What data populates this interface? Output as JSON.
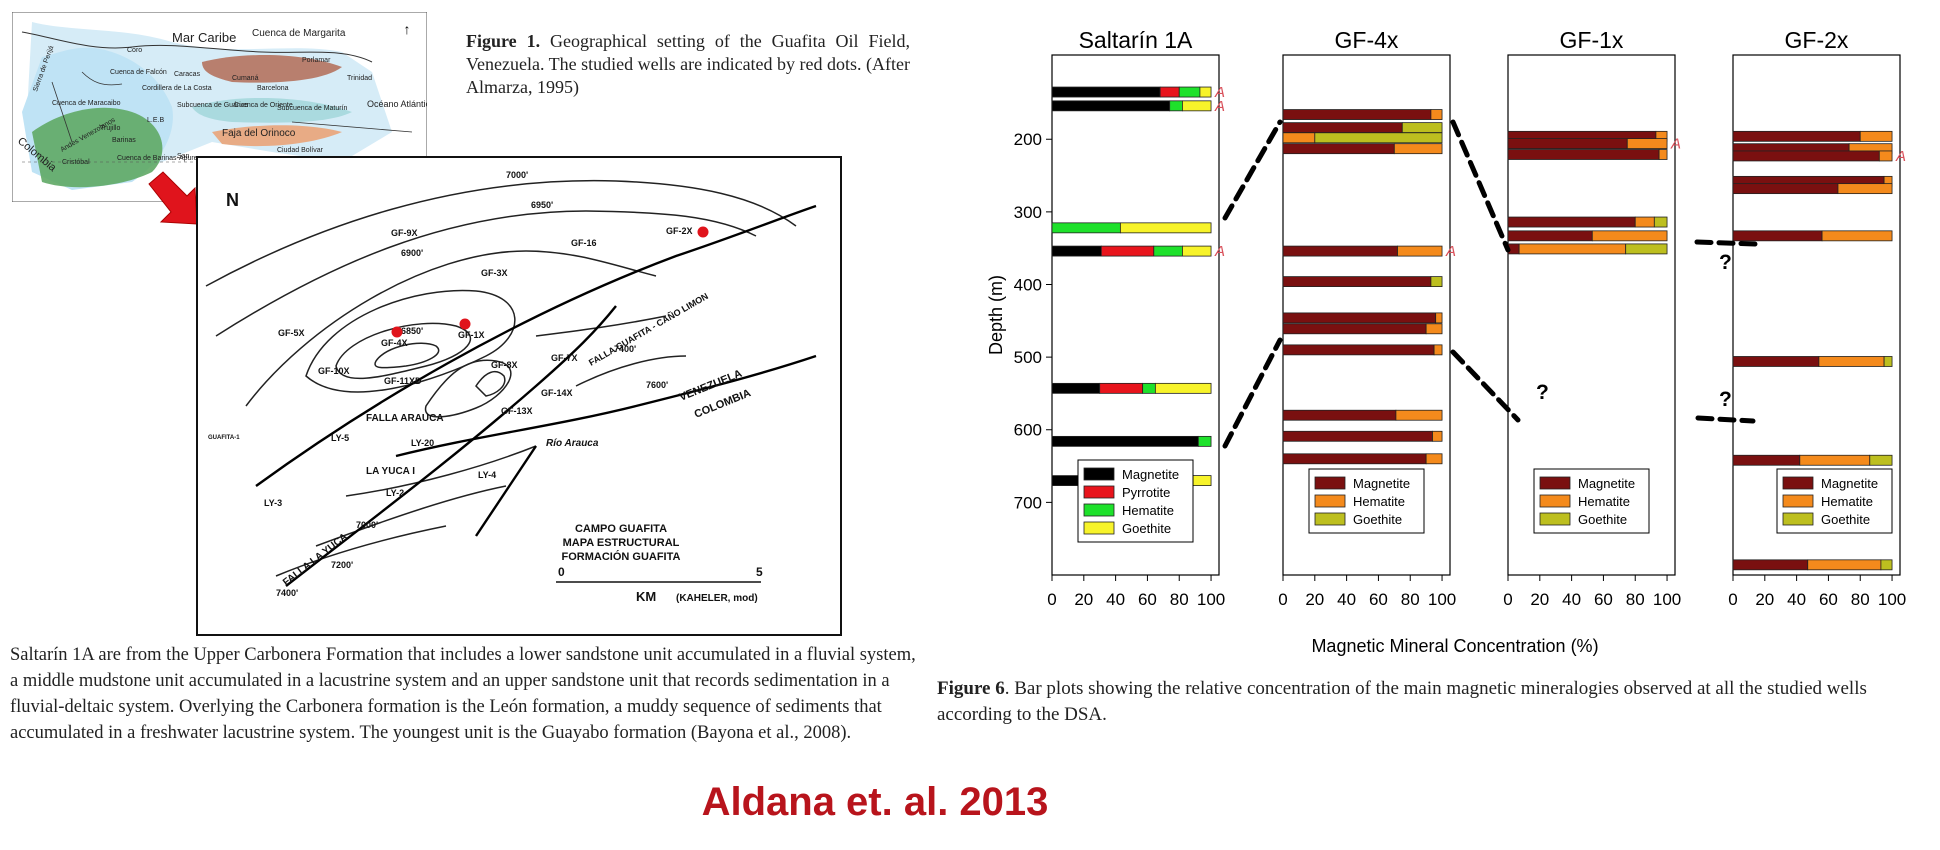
{
  "figure1": {
    "label": "Figure 1.",
    "caption": " Geographical setting of the Guafita Oil Field, Venezuela. The studied wells are indicated by red dots. (After Almarza, 1995)",
    "inset_labels": [
      "Mar Caribe",
      "Cuenca de Margarita",
      "Coro",
      "Cuenca de Falcón",
      "Cuenca de Maracaibo",
      "Cordillera de La Costa",
      "Caracas",
      "Cumaná",
      "Barcelona",
      "Porlamar",
      "Trinidad",
      "Océano Atlántico",
      "Colombia",
      "Sierra de Perijá",
      "Trujillo",
      "Andes Venezolanos",
      "Barinas",
      "Subcuenca de Guárico",
      "Cuenca de Oriente",
      "Subcuenca de Maturín",
      "Faja del Orinoco",
      "Ciudad Bolívar",
      "Cristóbal",
      "Cuenca de Barinas-Apure",
      "San",
      "L.E.B"
    ],
    "map_labels": {
      "north": "N",
      "wells": [
        "GF-9X",
        "GF-16",
        "GF-2X",
        "GF-3X",
        "GF-5X",
        "GF-4X",
        "GF-1X",
        "GF-10X",
        "GF-11XD",
        "GF-8X",
        "GF-7X",
        "GF-14X",
        "GF-13X",
        "LY-5",
        "LY-20",
        "LY-4",
        "LY-3",
        "LY-2",
        "LA YUCA I",
        "GUAFITA-1"
      ],
      "contours": [
        "7000'",
        "6950'",
        "6900'",
        "6850'",
        "7400'",
        "7600'",
        "7000'",
        "7200'",
        "7400'"
      ],
      "faults": [
        "FALLA GUAFITA - CAÑO LIMON",
        "FALLA ARAUCA",
        "FALLA LA YUCA",
        "Río Arauca",
        "VENEZUELA",
        "COLOMBIA"
      ],
      "title": [
        "CAMPO GUAFITA",
        "MAPA ESTRUCTURAL",
        "FORMACIÓN GUAFITA"
      ],
      "scale_start": "0",
      "scale_end": "5",
      "scale_unit": "KM",
      "credit": "(KAHELER, mod)"
    }
  },
  "body_text": "Saltarín 1A are from the Upper Carbonera Formation that includes a lower sandstone unit accumulated in a fluvial system, a middle mudstone unit accumulated in a lacustrine system and an upper sandstone unit that records sedimentation in a fluvial-deltaic system. Overlying the Carbonera formation is the León formation, a muddy sequence of sediments that accumulated in a freshwater lacustrine system. The youngest unit is the Guayabo formation (Bayona et al., 2008).",
  "figure6": {
    "label": "Figure 6",
    "caption": ". Bar plots showing the relative concentration of the main magnetic mineralogies observed at all the studied wells according to the DSA."
  },
  "citation": "Aldana et. al. 2013",
  "colors": {
    "Magnetite_saltarin": "#000000",
    "Pyrrotite": "#e8141c",
    "Hematite_saltarin": "#1ee12b",
    "Goethite_saltarin": "#f7f32a",
    "Magnetite": "#7a1010",
    "Hematite": "#f48a1c",
    "Goethite": "#bdbf1f",
    "red_dot": "#e0141c",
    "citation": "#b8141c"
  },
  "chart_data": {
    "type": "bar",
    "orientation": "horizontal-stacked",
    "xlabel": "Magnetic Mineral Concentration (%)",
    "ylabel": "Depth (m)",
    "ylim": [
      0,
      800
    ],
    "yticks": [
      200,
      300,
      400,
      500,
      600,
      700
    ],
    "xticks": [
      0,
      20,
      40,
      60,
      80,
      100
    ],
    "xlim": [
      0,
      105
    ],
    "annotation": "?",
    "wells": [
      {
        "name": "Saltarín 1A",
        "series": [
          "Magnetite",
          "Pyrrotite",
          "Hematite",
          "Goethite"
        ],
        "legend": "bottom-center",
        "bars": [
          {
            "depth": 135,
            "values": [
              68,
              12,
              13,
              7
            ],
            "mark": "A"
          },
          {
            "depth": 154,
            "values": [
              74,
              0,
              8,
              18
            ],
            "mark": "A"
          },
          {
            "depth": 322,
            "values": [
              0,
              0,
              43,
              57
            ]
          },
          {
            "depth": 354,
            "values": [
              31,
              33,
              18,
              18
            ],
            "mark": "A"
          },
          {
            "depth": 543,
            "values": [
              30,
              27,
              8,
              35
            ]
          },
          {
            "depth": 616,
            "values": [
              92,
              0,
              8,
              0
            ]
          },
          {
            "depth": 670,
            "values": [
              39,
              24,
              9,
              28
            ]
          }
        ]
      },
      {
        "name": "GF-4x",
        "series": [
          "Magnetite",
          "Hematite",
          "Goethite"
        ],
        "legend": "bottom-center",
        "bars": [
          {
            "depth": 166,
            "values": [
              93,
              7,
              0
            ]
          },
          {
            "depth": 184,
            "values": [
              75,
              0,
              25
            ]
          },
          {
            "depth": 198,
            "values": [
              0,
              20,
              80
            ]
          },
          {
            "depth": 213,
            "values": [
              70,
              30,
              0
            ]
          },
          {
            "depth": 354,
            "values": [
              72,
              28,
              0
            ],
            "mark": "A"
          },
          {
            "depth": 396,
            "values": [
              93,
              0,
              7
            ]
          },
          {
            "depth": 446,
            "values": [
              96,
              4,
              0
            ]
          },
          {
            "depth": 461,
            "values": [
              90,
              10,
              0
            ]
          },
          {
            "depth": 490,
            "values": [
              95,
              5,
              0
            ]
          },
          {
            "depth": 580,
            "values": [
              71,
              29,
              0
            ]
          },
          {
            "depth": 609,
            "values": [
              94,
              6,
              0
            ]
          },
          {
            "depth": 640,
            "values": [
              90,
              10,
              0
            ]
          }
        ]
      },
      {
        "name": "GF-1x",
        "series": [
          "Magnetite",
          "Hematite",
          "Goethite"
        ],
        "legend": "bottom-center",
        "bars": [
          {
            "depth": 196,
            "values": [
              93,
              7,
              0
            ]
          },
          {
            "depth": 206,
            "values": [
              75,
              25,
              0
            ],
            "mark": "A"
          },
          {
            "depth": 221,
            "values": [
              95,
              5,
              0
            ]
          },
          {
            "depth": 314,
            "values": [
              80,
              12,
              8
            ]
          },
          {
            "depth": 333,
            "values": [
              53,
              47,
              0
            ]
          },
          {
            "depth": 351,
            "values": [
              7,
              67,
              26
            ]
          }
        ]
      },
      {
        "name": "GF-2x",
        "series": [
          "Magnetite",
          "Hematite",
          "Goethite"
        ],
        "legend": "bottom-right",
        "bars": [
          {
            "depth": 196,
            "values": [
              80,
              20,
              0
            ]
          },
          {
            "depth": 213,
            "values": [
              73,
              27,
              0
            ]
          },
          {
            "depth": 223,
            "values": [
              92,
              8,
              0
            ],
            "mark": "A"
          },
          {
            "depth": 258,
            "values": [
              95,
              5,
              0
            ]
          },
          {
            "depth": 268,
            "values": [
              66,
              34,
              0
            ]
          },
          {
            "depth": 333,
            "values": [
              56,
              44,
              0
            ]
          },
          {
            "depth": 506,
            "values": [
              54,
              41,
              5
            ]
          },
          {
            "depth": 642,
            "values": [
              42,
              44,
              14
            ]
          },
          {
            "depth": 786,
            "values": [
              47,
              46,
              7
            ]
          }
        ]
      }
    ]
  }
}
